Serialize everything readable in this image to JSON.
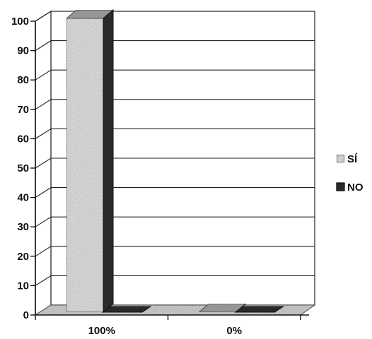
{
  "chart_data": {
    "type": "bar",
    "categories": [
      "100%",
      "0%"
    ],
    "series": [
      {
        "name": "SÍ",
        "values": [
          100,
          0
        ],
        "color": "#e2e2e2"
      },
      {
        "name": "NO",
        "values": [
          0,
          0
        ],
        "color": "#2a2a2a"
      }
    ],
    "ylim": [
      0,
      100
    ],
    "yticks": [
      0,
      10,
      20,
      30,
      40,
      50,
      60,
      70,
      80,
      90,
      100
    ],
    "grid": true,
    "three_d": true,
    "legend_position": "right"
  }
}
